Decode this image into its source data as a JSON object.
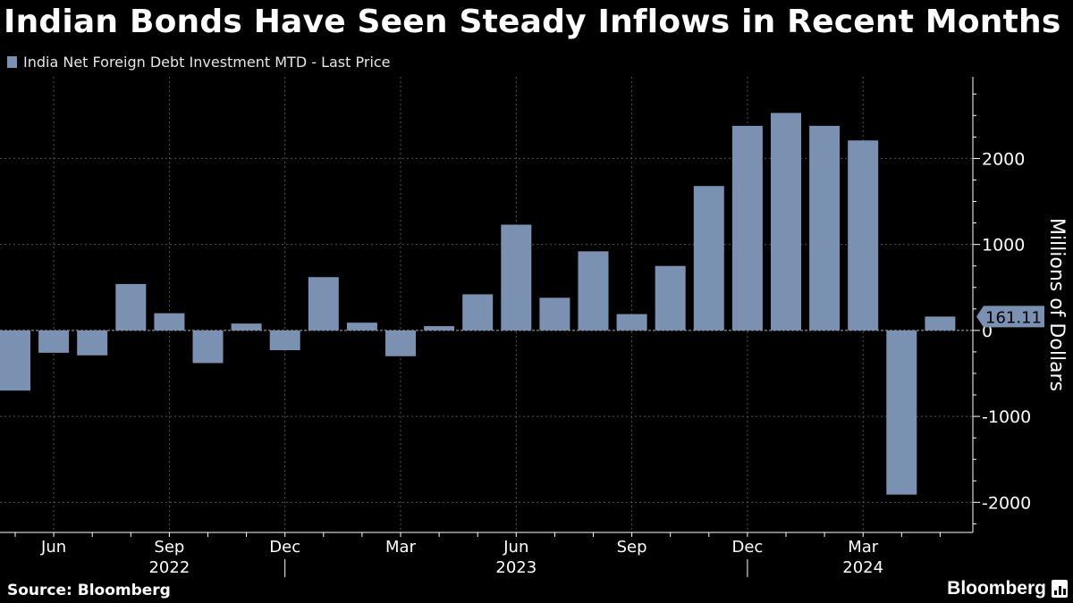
{
  "title": "Indian Bonds Have Seen Steady Inflows in Recent Months",
  "legend_label": "India Net Foreign Debt Investment MTD - Last Price",
  "source": "Source: Bloomberg",
  "brand": "Bloomberg",
  "colors": {
    "bar": "#7a91b2",
    "background": "#000000",
    "grid": "#555555",
    "text": "#ffffff"
  },
  "chart_data": {
    "type": "bar",
    "categories": [
      "2022-05",
      "2022-06",
      "2022-07",
      "2022-08",
      "2022-09",
      "2022-10",
      "2022-11",
      "2022-12",
      "2023-01",
      "2023-02",
      "2023-03",
      "2023-04",
      "2023-05",
      "2023-06",
      "2023-07",
      "2023-08",
      "2023-09",
      "2023-10",
      "2023-11",
      "2023-12",
      "2024-01",
      "2024-02",
      "2024-03",
      "2024-04",
      "2024-05"
    ],
    "values": [
      -700,
      -260,
      -290,
      540,
      200,
      -380,
      80,
      -230,
      620,
      90,
      -300,
      50,
      420,
      1230,
      380,
      920,
      190,
      750,
      1680,
      2380,
      2530,
      2380,
      2210,
      -1910,
      161.11
    ],
    "ylabel": "Millions of Dollars",
    "ylim": [
      -2350,
      2950
    ],
    "yticks": [
      -2000,
      -1000,
      0,
      1000,
      2000
    ],
    "ytick_labels": [
      "-2000",
      "-1000",
      "0",
      "1000",
      "2000"
    ],
    "xtick_labels": [
      "Jun",
      "Sep",
      "Dec",
      "Mar",
      "Jun",
      "Sep",
      "Dec",
      "Mar"
    ],
    "xtick_months": [
      "2022-06",
      "2022-09",
      "2022-12",
      "2023-03",
      "2023-06",
      "2023-09",
      "2023-12",
      "2024-03"
    ],
    "year_labels": [
      "2022",
      "2023",
      "2024"
    ],
    "year_label_months": [
      "2022-09",
      "2023-06",
      "2024-03"
    ],
    "year_dividers": [
      "2022-12",
      "2023-12"
    ],
    "last_value_label": "161.11",
    "grid": true,
    "legend_position": "top-left"
  }
}
